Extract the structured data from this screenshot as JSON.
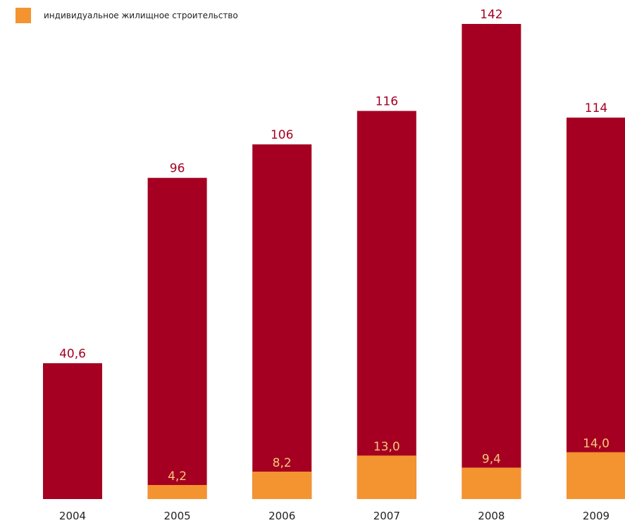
{
  "legend": {
    "label": "индивидуальное жилищное строительство"
  },
  "colors": {
    "total_bar": "#a50022",
    "part_bar": "#f39430",
    "total_label": "#a50022",
    "part_label": "#f6c779"
  },
  "chart_data": {
    "type": "bar",
    "stacked_overlay": true,
    "categories": [
      "2004",
      "2005",
      "2006",
      "2007",
      "2008",
      "2009"
    ],
    "series": [
      {
        "values": [
          40.6,
          96,
          106,
          116,
          142,
          114
        ],
        "labels": [
          "40,6",
          "96",
          "106",
          "116",
          "142",
          "114"
        ]
      },
      {
        "name": "индивидуальное жилищное строительство",
        "values": [
          null,
          4.2,
          8.2,
          13.0,
          9.4,
          14.0
        ],
        "labels": [
          "",
          "4,2",
          "8,2",
          "13,0",
          "9,4",
          "14,0"
        ]
      }
    ],
    "ylim": [
      0,
      142
    ],
    "grid": false,
    "legend_position": "top-left"
  }
}
